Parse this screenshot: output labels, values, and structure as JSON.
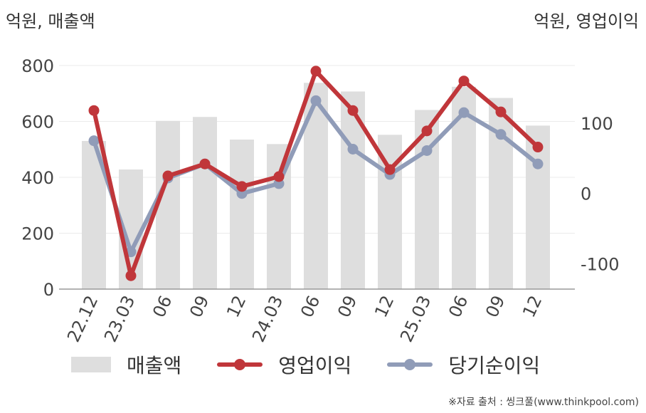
{
  "unit_left": "억원, 매출액",
  "unit_right": "억원, 영업이익",
  "source": "※자료 출처 : 씽크풀(www.thinkpool.com)",
  "colors": {
    "revenue": "#dedede",
    "operating_profit": "#c0363a",
    "net_income": "#909cb8",
    "axis": "#999999",
    "grid": "#ebebeb",
    "text": "#444444"
  },
  "chart_data": {
    "type": "bar",
    "categories": [
      "22.12",
      "23.03",
      "06",
      "09",
      "12",
      "24.03",
      "06",
      "09",
      "12",
      "25.03",
      "06",
      "09",
      "12"
    ],
    "y_left": {
      "ticks": [
        0,
        200,
        400,
        600,
        800
      ],
      "range": [
        0,
        800
      ]
    },
    "y_right": {
      "ticks": [
        -100,
        0,
        100
      ],
      "range": [
        -136,
        182
      ]
    },
    "grid": true,
    "legend_position": "bottom",
    "series": [
      {
        "name": "매출액",
        "type": "bar",
        "axis": "left",
        "values": [
          530,
          428,
          602,
          616,
          535,
          519,
          738,
          707,
          552,
          641,
          724,
          684,
          585
        ]
      },
      {
        "name": "영업이익",
        "type": "line",
        "axis": "right",
        "values": [
          118,
          -117,
          25,
          42,
          10,
          24,
          174,
          118,
          34,
          89,
          160,
          116,
          66
        ]
      },
      {
        "name": "당기순이익",
        "type": "line",
        "axis": "right",
        "values": [
          75,
          -83,
          22,
          42,
          0,
          14,
          132,
          63,
          27,
          61,
          115,
          84,
          42
        ]
      }
    ]
  }
}
